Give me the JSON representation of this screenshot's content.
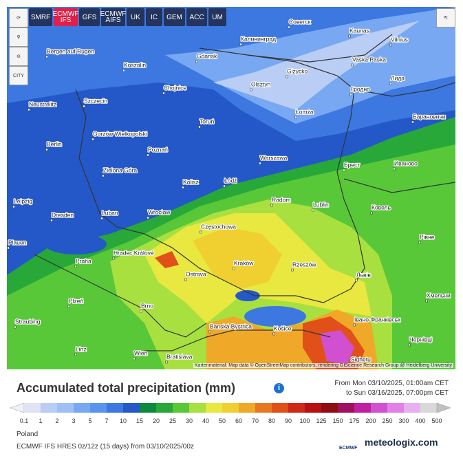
{
  "toolbar": {
    "models": [
      "SMRF",
      "ECMWF IFS",
      "GFS",
      "ECMWF AIFS",
      "UK",
      "IC",
      "GEM",
      "ACC",
      "UM"
    ],
    "city_toggle": "CITY"
  },
  "map": {
    "cities": [
      {
        "label": "Bergen auf Rugen"
      },
      {
        "label": "Koszalin"
      },
      {
        "label": "Gdansk"
      },
      {
        "label": "Калининград"
      },
      {
        "label": "Советск"
      },
      {
        "label": "Kaunas"
      },
      {
        "label": "Vilnius"
      },
      {
        "label": "Vaska Paska"
      },
      {
        "label": "Гродно"
      },
      {
        "label": "Лида"
      },
      {
        "label": "Gizycko"
      },
      {
        "label": "Olsztyn"
      },
      {
        "label": "Chojnice"
      },
      {
        "label": "Neustrelitz"
      },
      {
        "label": "Szczecin"
      },
      {
        "label": "Toruń"
      },
      {
        "label": "Łomża"
      },
      {
        "label": "Барановичи"
      },
      {
        "label": "Gorzów Wielkopolski"
      },
      {
        "label": "Berlin"
      },
      {
        "label": "Poznań"
      },
      {
        "label": "Warszawa"
      },
      {
        "label": "Брест"
      },
      {
        "label": "Иваново"
      },
      {
        "label": "Zielona Góra"
      },
      {
        "label": "Kalisz"
      },
      {
        "label": "Łódź"
      },
      {
        "label": "Leipzig"
      },
      {
        "label": "Radom"
      },
      {
        "label": "Lublin"
      },
      {
        "label": "Ковель"
      },
      {
        "label": "Dresden"
      },
      {
        "label": "Luban"
      },
      {
        "label": "Wrocław"
      },
      {
        "label": "Częstochowa"
      },
      {
        "label": "Plauen"
      },
      {
        "label": "Hradec Králové"
      },
      {
        "label": "Рівне"
      },
      {
        "label": "Praha"
      },
      {
        "label": "Kraków"
      },
      {
        "label": "Rzeszów"
      },
      {
        "label": "Ostrava"
      },
      {
        "label": "Львів"
      },
      {
        "label": "Plzeň"
      },
      {
        "label": "Brno"
      },
      {
        "label": "Хмельни"
      },
      {
        "label": "Straubing"
      },
      {
        "label": "Banská Bystrica"
      },
      {
        "label": "Košice"
      },
      {
        "label": "Івано-Франківськ"
      },
      {
        "label": "Linz"
      },
      {
        "label": "Wien"
      },
      {
        "label": "Bratislava"
      },
      {
        "label": "Чернівці"
      },
      {
        "label": "Sighetu"
      }
    ],
    "attribution": "Kartenmaterial: Map data © OpenStreetMap contributors, rendering GIScience Research Group @ Heidelberg University"
  },
  "legend": {
    "title": "Accumulated total precipitation (mm)",
    "from": "From Mon 03/10/2025, 01:00am CET",
    "to": "to Sun 03/16/2025, 07:00pm CET",
    "labels": [
      0.1,
      1,
      2,
      3,
      5,
      7,
      10,
      15,
      20,
      25,
      30,
      40,
      50,
      60,
      70,
      80,
      90,
      100,
      125,
      150,
      175,
      200,
      250,
      300,
      400,
      500
    ],
    "colors": [
      "#f0f0f8",
      "#dfe3f5",
      "#b9cdf5",
      "#9ec0f4",
      "#78a8f2",
      "#5a94ec",
      "#3c78e0",
      "#2558c8",
      "#0f8a3c",
      "#28a838",
      "#58c838",
      "#a8e040",
      "#e8e840",
      "#f0d030",
      "#f0a828",
      "#e87820",
      "#e05018",
      "#d02818",
      "#b81010",
      "#900c14",
      "#a01060",
      "#c020a0",
      "#d050d0",
      "#e080e8",
      "#e8b0f0",
      "#d8d8d8",
      "#c0c0c0"
    ]
  },
  "footer": {
    "region": "Poland",
    "run": "ECMWF IFS HRES 0z/12z (15 days) from 03/10/2025/00z",
    "logo1": "ECMWF",
    "logo2": "meteologix.com"
  }
}
